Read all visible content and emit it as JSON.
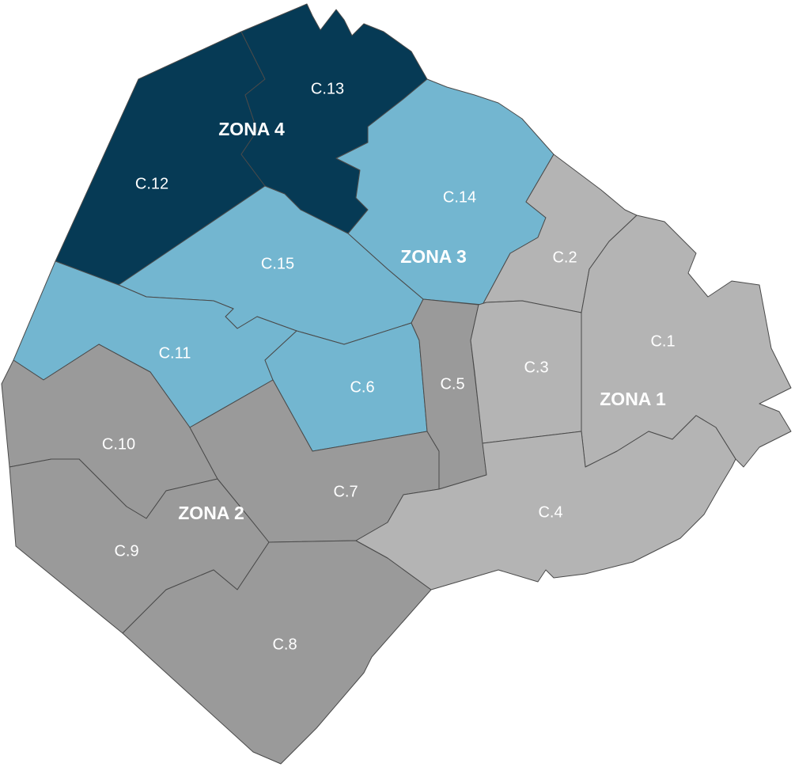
{
  "zones": [
    {
      "label": "ZONA 1",
      "comunas": [
        {
          "label": "C.1"
        },
        {
          "label": "C.2"
        },
        {
          "label": "C.3"
        },
        {
          "label": "C.4"
        }
      ]
    },
    {
      "label": "ZONA 2",
      "comunas": [
        {
          "label": "C.5"
        },
        {
          "label": "C.7"
        },
        {
          "label": "C.8"
        },
        {
          "label": "C.9"
        },
        {
          "label": "C.10"
        }
      ]
    },
    {
      "label": "ZONA 3",
      "comunas": [
        {
          "label": "C.6"
        },
        {
          "label": "C.11"
        },
        {
          "label": "C.14"
        },
        {
          "label": "C.15"
        }
      ]
    },
    {
      "label": "ZONA 4",
      "comunas": [
        {
          "label": "C.12"
        },
        {
          "label": "C.13"
        }
      ]
    }
  ]
}
